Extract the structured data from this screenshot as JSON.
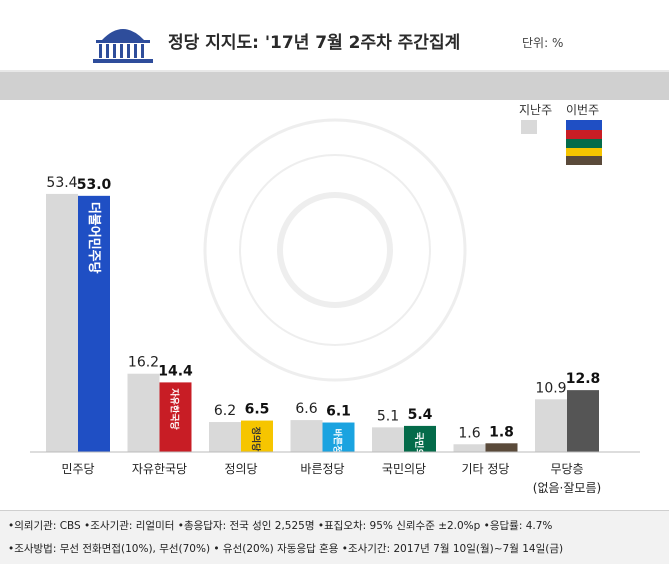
{
  "header": {
    "title": "정당 지지도: '17년 7월 2주차 주간집계",
    "unit": "단위: %"
  },
  "legend": {
    "previous": "지난주",
    "current": "이번주"
  },
  "colors": {
    "previous": "#d9d9d9",
    "minju": "#1f4fc4",
    "liberty": "#c81d25",
    "justice": "#f6c500",
    "bareun": "#1aa3e0",
    "people": "#046b4a",
    "other": "#5a4a3a",
    "none": "#555555"
  },
  "chart_data": {
    "type": "bar",
    "categories": [
      "민주당",
      "자유한국당",
      "정의당",
      "바른정당",
      "국민의당",
      "기타 정당",
      "무당층"
    ],
    "series": [
      {
        "name": "지난주",
        "values": [
          53.4,
          16.2,
          6.2,
          6.6,
          5.1,
          1.6,
          10.9
        ]
      },
      {
        "name": "이번주",
        "values": [
          53.0,
          14.4,
          6.5,
          6.1,
          5.4,
          1.8,
          12.8
        ]
      }
    ],
    "value_labels": {
      "previous": [
        "53.4",
        "16.2",
        "6.2",
        "6.6",
        "5.1",
        "1.6",
        "10.9"
      ],
      "current": [
        "53.0",
        "14.4",
        "6.5",
        "6.1",
        "5.4",
        "1.8",
        "12.8"
      ]
    },
    "category_sub": [
      "",
      "",
      "",
      "",
      "",
      "",
      "(없음·잘모름)"
    ],
    "bar_logos": [
      "더불어민주당",
      "자유한국당",
      "정의당",
      "바른정당",
      "국민의당",
      "",
      ""
    ],
    "ylim": [
      0,
      60
    ],
    "grid": false,
    "legend_position": "top-right"
  },
  "notes": {
    "line1": "•의뢰기관: CBS  •조사기관: 리얼미터  •총응답자: 전국 성인 2,525명  •표집오차: 95% 신뢰수준 ±2.0%p  •응답률: 4.7%",
    "line2": "•조사방법: 무선 전화면접(10%), 무선(70%) • 유선(20%) 자동응답 혼용  •조사기간: 2017년 7월 10일(월)~7월 14일(금)"
  }
}
